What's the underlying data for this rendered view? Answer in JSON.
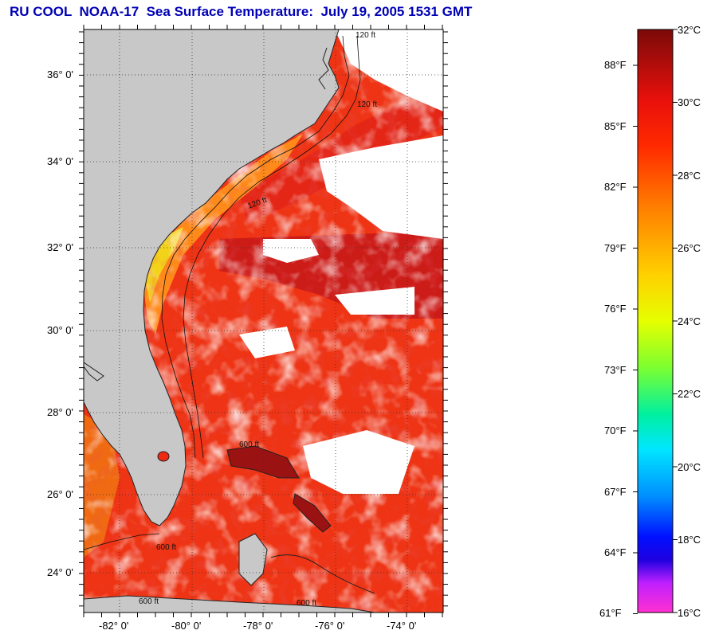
{
  "title": "RU COOL  NOAA-17  Sea Surface Temperature:  July 19, 2005 1531 GMT",
  "map": {
    "lat_labels": [
      "36° 0'",
      "34° 0'",
      "32° 0'",
      "30° 0'",
      "28° 0'",
      "26° 0'",
      "24° 0'"
    ],
    "lon_labels": [
      "-82° 0'",
      "-80° 0'",
      "-78° 0'",
      "-76° 0'",
      "-74° 0'"
    ],
    "isobath_labels": [
      "120 ft",
      "120 ft",
      "120 ft",
      "600 ft",
      "600 ft",
      "600 ft",
      "600 ft"
    ],
    "colors": {
      "land": "#c8c8c8",
      "cloud": "#ffffff",
      "warm_ocean": "#ee2a10",
      "hot_ocean": "#c8141c"
    }
  },
  "colorbar": {
    "celsius_labels": [
      "32°C",
      "30°C",
      "28°C",
      "26°C",
      "24°C",
      "22°C",
      "20°C",
      "18°C",
      "16°C"
    ],
    "fahrenheit_labels": [
      "88°F",
      "85°F",
      "82°F",
      "79°F",
      "76°F",
      "73°F",
      "70°F",
      "67°F",
      "64°F",
      "61°F"
    ],
    "range_c": [
      16,
      32
    ],
    "range_f": [
      61,
      89.6
    ]
  }
}
